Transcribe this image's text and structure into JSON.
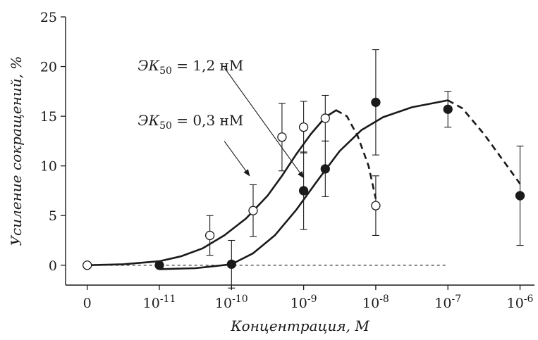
{
  "chart_data": {
    "type": "scatter",
    "title": "",
    "xlabel": "Концентрация, М",
    "ylabel": "Усиление сокращений, %",
    "ylim": [
      -2,
      25
    ],
    "xlim": [
      -0.3,
      6.2
    ],
    "x_ticks": [
      {
        "pos": 0,
        "base": "0",
        "exp": ""
      },
      {
        "pos": 1,
        "base": "10",
        "exp": "-11"
      },
      {
        "pos": 2,
        "base": "10",
        "exp": "-10"
      },
      {
        "pos": 3,
        "base": "10",
        "exp": "-9"
      },
      {
        "pos": 4,
        "base": "10",
        "exp": "-8"
      },
      {
        "pos": 5,
        "base": "10",
        "exp": "-7"
      },
      {
        "pos": 6,
        "base": "10",
        "exp": "-6"
      }
    ],
    "y_ticks": [
      0,
      5,
      10,
      15,
      20,
      25
    ],
    "grid": false,
    "series": [
      {
        "marker": "open-circle",
        "points": [
          {
            "x": 0,
            "y": 0,
            "err": 0
          },
          {
            "x": 1.7,
            "y": 3.0,
            "err": 2.0
          },
          {
            "x": 2.3,
            "y": 5.5,
            "err": 2.6
          },
          {
            "x": 2.7,
            "y": 12.9,
            "err": 3.4
          },
          {
            "x": 3.0,
            "y": 13.9,
            "err": 2.6
          },
          {
            "x": 3.3,
            "y": 14.8,
            "err": 2.3
          },
          {
            "x": 4.0,
            "y": 6.0,
            "err": 3.0
          }
        ]
      },
      {
        "marker": "filled-circle",
        "points": [
          {
            "x": 1.0,
            "y": 0,
            "err": 0
          },
          {
            "x": 2.0,
            "y": 0.1,
            "err": 2.4
          },
          {
            "x": 3.0,
            "y": 7.5,
            "err": 3.9
          },
          {
            "x": 3.3,
            "y": 9.7,
            "err": 2.8
          },
          {
            "x": 4.0,
            "y": 16.4,
            "err": 5.3
          },
          {
            "x": 5.0,
            "y": 15.7,
            "err": 1.8
          },
          {
            "x": 6.0,
            "y": 7.0,
            "err": 5.0
          }
        ]
      }
    ],
    "curves": [
      {
        "style": "solid",
        "points": [
          [
            0,
            0
          ],
          [
            0.5,
            0.1
          ],
          [
            1.0,
            0.4
          ],
          [
            1.3,
            0.9
          ],
          [
            1.6,
            1.7
          ],
          [
            1.9,
            3.0
          ],
          [
            2.2,
            4.7
          ],
          [
            2.5,
            7.0
          ],
          [
            2.7,
            9.0
          ],
          [
            2.9,
            11.2
          ],
          [
            3.1,
            13.2
          ],
          [
            3.3,
            14.9
          ],
          [
            3.45,
            15.6
          ]
        ]
      },
      {
        "style": "dashed",
        "points": [
          [
            3.45,
            15.6
          ],
          [
            3.6,
            15.0
          ],
          [
            3.75,
            13.0
          ],
          [
            3.9,
            10.0
          ],
          [
            4.0,
            6.7
          ]
        ]
      },
      {
        "style": "solid",
        "points": [
          [
            1.0,
            -0.4
          ],
          [
            1.5,
            -0.3
          ],
          [
            2.0,
            0.1
          ],
          [
            2.3,
            1.2
          ],
          [
            2.6,
            3.0
          ],
          [
            2.9,
            5.6
          ],
          [
            3.2,
            8.6
          ],
          [
            3.5,
            11.5
          ],
          [
            3.8,
            13.6
          ],
          [
            4.1,
            14.9
          ],
          [
            4.5,
            15.9
          ],
          [
            5.0,
            16.6
          ]
        ]
      },
      {
        "style": "dashed",
        "points": [
          [
            5.0,
            16.6
          ],
          [
            5.2,
            15.8
          ],
          [
            5.5,
            13.2
          ],
          [
            5.8,
            10.2
          ],
          [
            6.0,
            8.2
          ]
        ]
      },
      {
        "style": "dashed-baseline",
        "points": [
          [
            0,
            0
          ],
          [
            5.0,
            0
          ]
        ]
      }
    ],
    "annotations": [
      {
        "text_main": "ЭК",
        "text_sub": "50",
        "text_rest": " = 1,2 нМ",
        "label_at": [
          0.7,
          20.1
        ],
        "arrow_from": [
          1.9,
          19.9
        ],
        "arrow_to": [
          3.0,
          8.8
        ]
      },
      {
        "text_main": "ЭК",
        "text_sub": "50",
        "text_rest": " = 0,3 нМ",
        "label_at": [
          0.7,
          14.6
        ],
        "arrow_from": [
          1.9,
          12.5
        ],
        "arrow_to": [
          2.25,
          9.0
        ]
      }
    ]
  }
}
